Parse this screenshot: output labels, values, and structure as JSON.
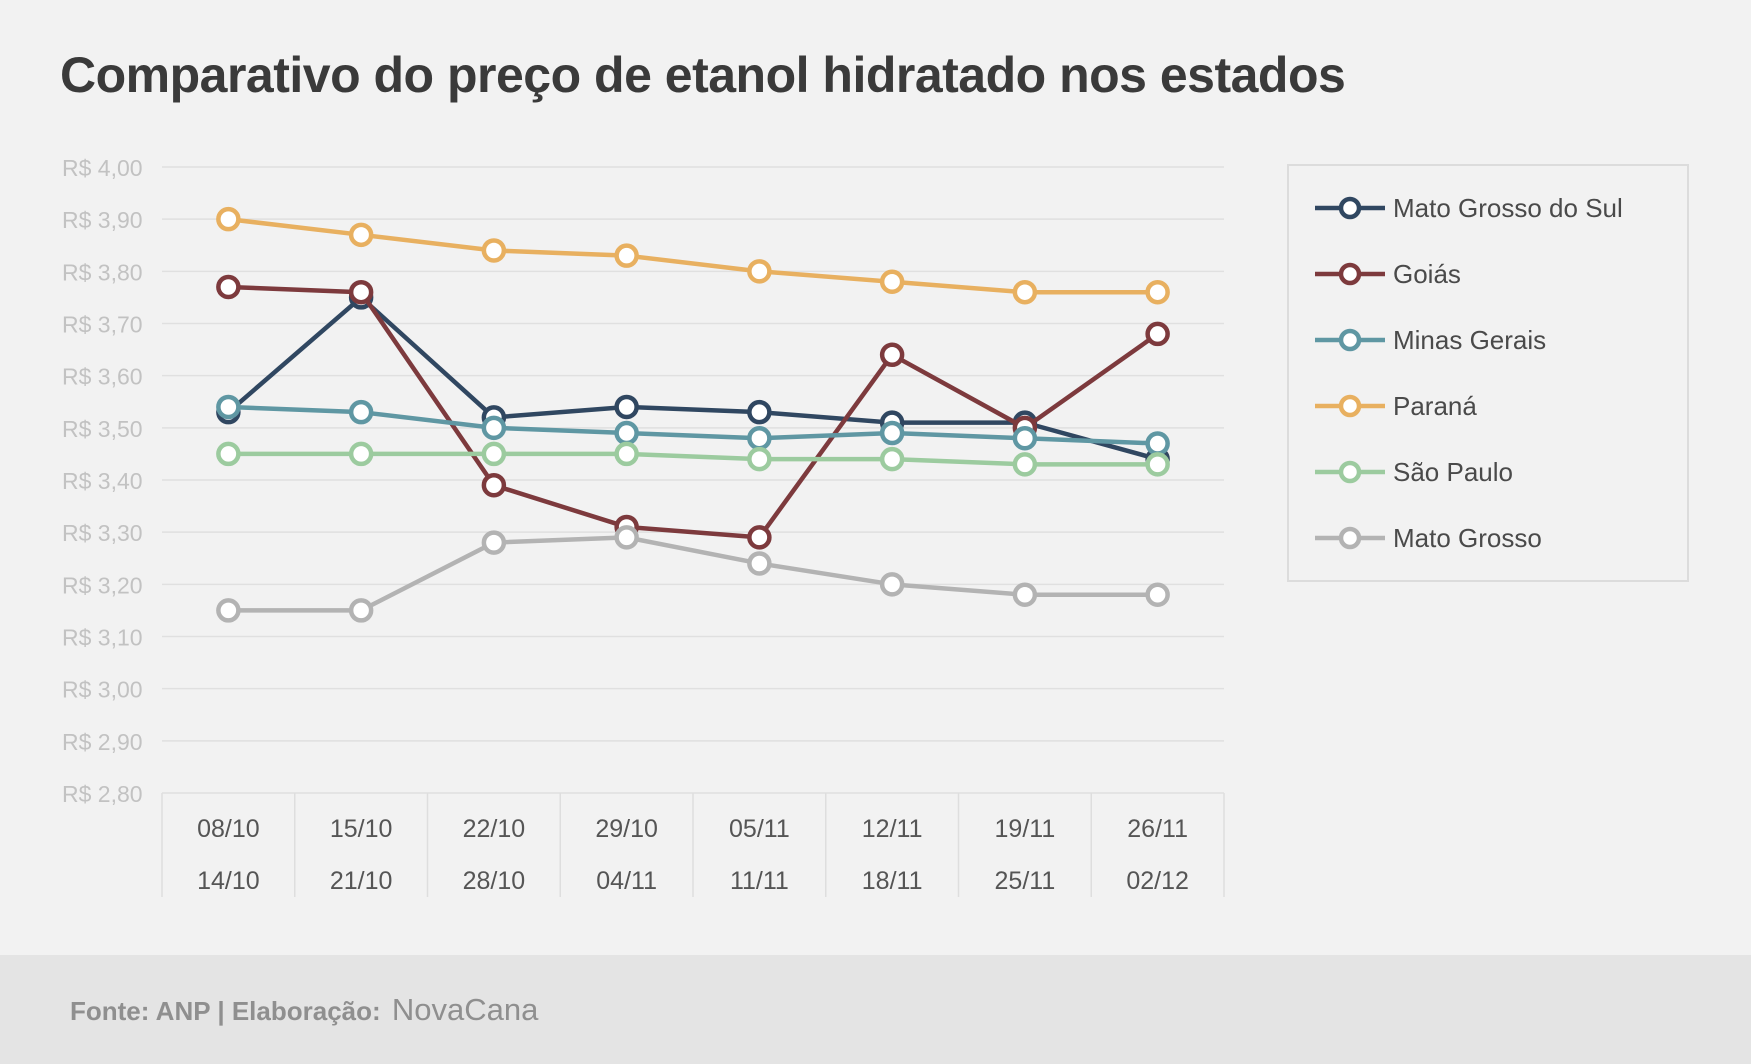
{
  "title": "Comparativo do preço de etanol hidratado nos estados",
  "footer": {
    "source": "Fonte: ANP | Elaboração:",
    "brand": "NovaCana"
  },
  "chart_data": {
    "type": "line",
    "title": "Comparativo do preço de etanol hidratado nos estados",
    "xlabel": "",
    "ylabel": "",
    "ylim": [
      2.8,
      4.0
    ],
    "grid": true,
    "legend": "right",
    "y_ticks": [
      "R$ 4,00",
      "R$ 3,90",
      "R$ 3,80",
      "R$ 3,70",
      "R$ 3,60",
      "R$ 3,50",
      "R$ 3,40",
      "R$ 3,30",
      "R$ 3,20",
      "R$ 3,10",
      "R$ 3,00",
      "R$ 2,90",
      "R$ 2,80"
    ],
    "categories": [
      {
        "start": "08/10",
        "end": "14/10"
      },
      {
        "start": "15/10",
        "end": "21/10"
      },
      {
        "start": "22/10",
        "end": "28/10"
      },
      {
        "start": "29/10",
        "end": "04/11"
      },
      {
        "start": "05/11",
        "end": "11/11"
      },
      {
        "start": "12/11",
        "end": "18/11"
      },
      {
        "start": "19/11",
        "end": "25/11"
      },
      {
        "start": "26/11",
        "end": "02/12"
      }
    ],
    "series": [
      {
        "name": "Mato Grosso do Sul",
        "color": "#304761",
        "values": [
          3.53,
          3.75,
          3.52,
          3.54,
          3.53,
          3.51,
          3.51,
          3.44
        ]
      },
      {
        "name": "Goiás",
        "color": "#7d3a3d",
        "values": [
          3.77,
          3.76,
          3.39,
          3.31,
          3.29,
          3.64,
          3.5,
          3.68
        ]
      },
      {
        "name": "Minas Gerais",
        "color": "#5f97a3",
        "values": [
          3.54,
          3.53,
          3.5,
          3.49,
          3.48,
          3.49,
          3.48,
          3.47
        ]
      },
      {
        "name": "Paraná",
        "color": "#e8b060",
        "values": [
          3.9,
          3.87,
          3.84,
          3.83,
          3.8,
          3.78,
          3.76,
          3.76
        ]
      },
      {
        "name": "São Paulo",
        "color": "#9ccb9f",
        "values": [
          3.45,
          3.45,
          3.45,
          3.45,
          3.44,
          3.44,
          3.43,
          3.43
        ]
      },
      {
        "name": "Mato Grosso",
        "color": "#b3b3b3",
        "values": [
          3.15,
          3.15,
          3.28,
          3.29,
          3.24,
          3.2,
          3.18,
          3.18
        ]
      }
    ]
  }
}
